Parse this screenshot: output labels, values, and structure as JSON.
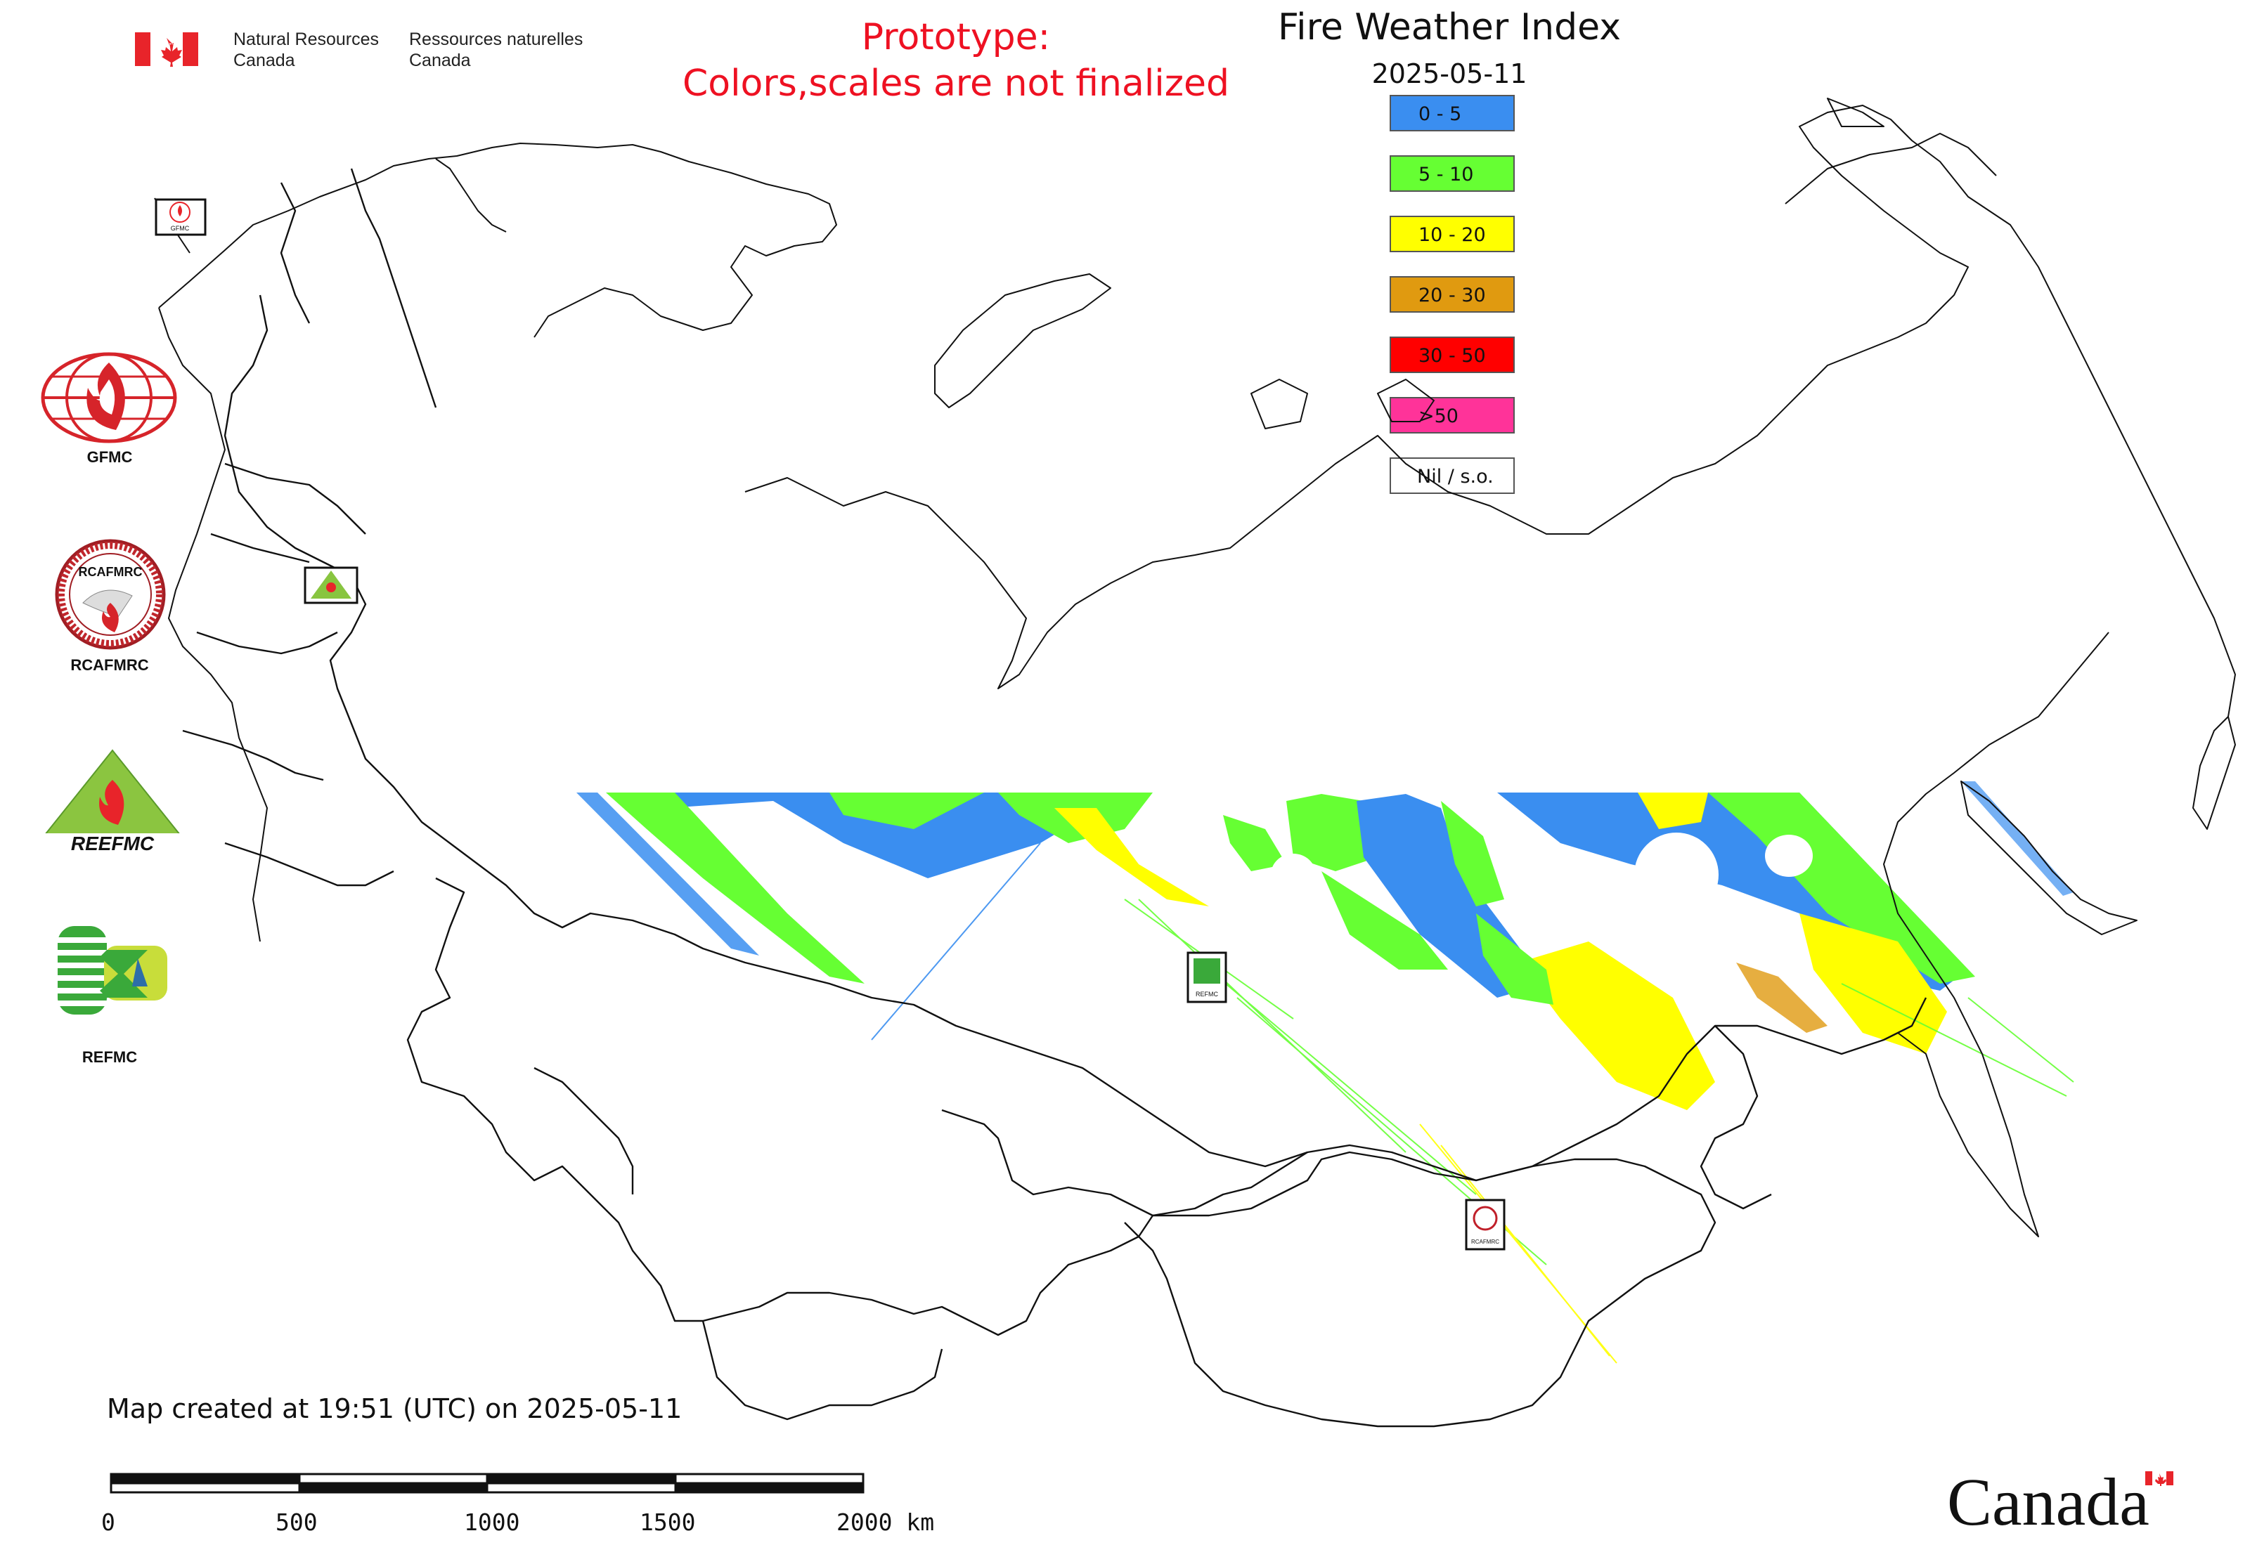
{
  "header": {
    "org_en_line1": "Natural Resources",
    "org_en_line2": "Canada",
    "org_fr_line1": "Ressources naturelles",
    "org_fr_line2": "Canada"
  },
  "notice": {
    "line1": "Prototype:",
    "line2": "Colors,scales are not finalized",
    "color": "#ee1122"
  },
  "map": {
    "title": "Fire Weather Index",
    "date": "2025-05-11"
  },
  "legend": {
    "items": [
      {
        "label": "0 - 5",
        "color": "#3a8ef0"
      },
      {
        "label": "5 - 10",
        "color": "#66ff33"
      },
      {
        "label": "10 - 20",
        "color": "#ffff00"
      },
      {
        "label": "20 - 30",
        "color": "#e09a10"
      },
      {
        "label": "30 - 50",
        "color": "#ff0000"
      },
      {
        "label": ">50",
        "color": "#ff3399"
      },
      {
        "label": "Nil / s.o.",
        "color": "#ffffff"
      }
    ]
  },
  "logos": {
    "gfmc": "GFMC",
    "rcafmrc": "RCAFMRC",
    "reefmc": "REEFMC",
    "refmc": "REFMC",
    "rcafmrc_ring": "RCAFMRC",
    "reefmc_word": "REEFMC"
  },
  "footer": {
    "created": "Map created at 19:51 (UTC) on 2025-05-11",
    "scale_labels": [
      "0",
      "500",
      "1000",
      "1500",
      "2000 km"
    ],
    "wordmark": "Canada"
  },
  "icons": [
    "canada-flag-icon",
    "gfmc-logo-icon",
    "rcafmrc-logo-icon",
    "reefmc-logo-icon",
    "refmc-logo-icon",
    "canada-wordmark-flag-icon"
  ]
}
